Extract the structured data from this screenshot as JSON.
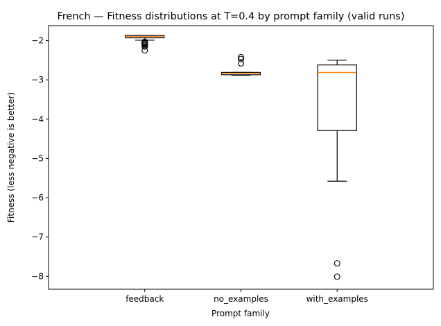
{
  "chart_data": {
    "type": "box",
    "title": "French — Fitness distributions at T=0.4 by prompt family (valid runs)",
    "xlabel": "Prompt family",
    "ylabel": "Fitness (less negative is better)",
    "ylim": [
      -8.33,
      -1.62
    ],
    "yticks": [
      -8,
      -7,
      -6,
      -5,
      -4,
      -3,
      -2
    ],
    "ytick_labels": [
      "−8",
      "−7",
      "−6",
      "−5",
      "−4",
      "−3",
      "−2"
    ],
    "grid": false,
    "colors": {
      "box": "#000000",
      "median": "#ff7f0e"
    },
    "categories": [
      "feedback",
      "no_examples",
      "with_examples"
    ],
    "boxes": [
      {
        "category": "feedback",
        "q1": -1.93,
        "median": -1.9,
        "q3": -1.87,
        "whisker_low": -1.99,
        "whisker_high": -1.87,
        "outliers": [
          -2.03,
          -2.05,
          -2.07,
          -2.09,
          -2.12,
          -2.15,
          -2.25
        ]
      },
      {
        "category": "no_examples",
        "q1": -2.87,
        "median": -2.83,
        "q3": -2.81,
        "whisker_low": -2.88,
        "whisker_high": -2.81,
        "outliers": [
          -2.42,
          -2.47,
          -2.58
        ]
      },
      {
        "category": "with_examples",
        "q1": -4.29,
        "median": -2.81,
        "q3": -2.62,
        "whisker_low": -5.58,
        "whisker_high": -2.5,
        "outliers": [
          -7.67,
          -8.01
        ]
      }
    ]
  }
}
